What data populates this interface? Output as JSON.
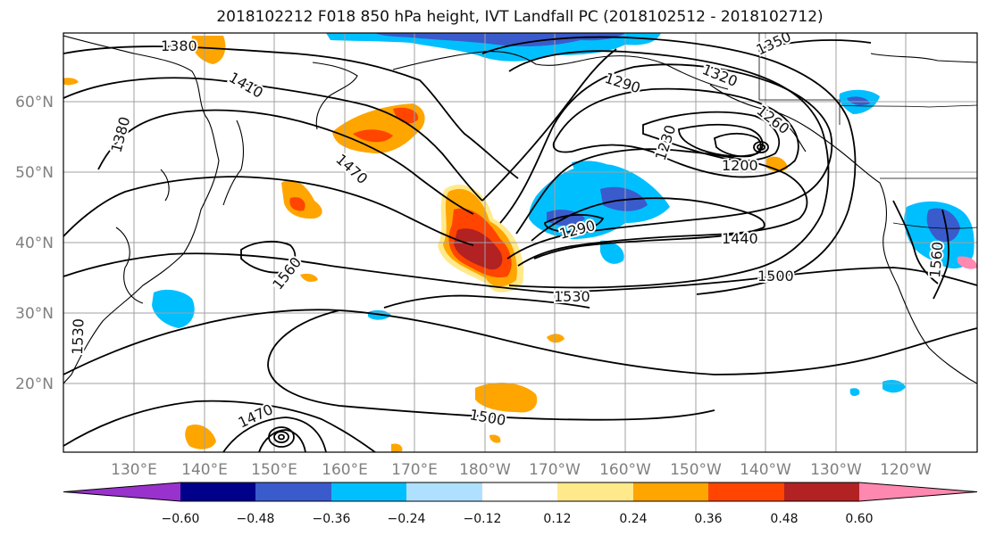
{
  "title": "2018102212 F018 850 hPa height, IVT Landfall PC (2018102512 - 2018102712)",
  "lat_ticks": [
    "60°N",
    "50°N",
    "40°N",
    "30°N",
    "20°N"
  ],
  "lon_ticks": [
    "130°E",
    "140°E",
    "150°E",
    "160°E",
    "170°E",
    "180°W",
    "170°W",
    "160°W",
    "150°W",
    "140°W",
    "130°W",
    "120°W"
  ],
  "colorbar": {
    "colors": [
      "#9932cc",
      "#00008b",
      "#3a5bcc",
      "#00bfff",
      "#b0e0ff",
      "#ffffff",
      "#ffe98a",
      "#ffa500",
      "#ff4500",
      "#b22222",
      "#ff88b0"
    ],
    "ticks": [
      "−0.60",
      "−0.48",
      "−0.36",
      "−0.24",
      "−0.12",
      "0.12",
      "0.24",
      "0.36",
      "0.48",
      "0.60"
    ]
  },
  "contour_labels": [
    "1380",
    "1410",
    "1380",
    "1470",
    "1560",
    "1530",
    "1290",
    "1320",
    "1350",
    "1260",
    "1230",
    "1200",
    "1290",
    "1440",
    "1500",
    "1530",
    "1470",
    "1500",
    "1560"
  ],
  "colors": {
    "positive_core": "#b22222",
    "negative_core": "#3a5bcc",
    "contour": "#000000"
  }
}
